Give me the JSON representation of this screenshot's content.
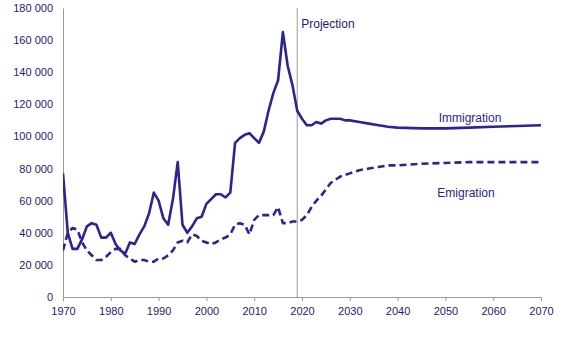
{
  "chart_data": {
    "type": "line",
    "x": [
      1970,
      1971,
      1972,
      1973,
      1974,
      1975,
      1976,
      1977,
      1978,
      1979,
      1980,
      1981,
      1982,
      1983,
      1984,
      1985,
      1986,
      1987,
      1988,
      1989,
      1990,
      1991,
      1992,
      1993,
      1994,
      1995,
      1996,
      1997,
      1998,
      1999,
      2000,
      2001,
      2002,
      2003,
      2004,
      2005,
      2006,
      2007,
      2008,
      2009,
      2010,
      2011,
      2012,
      2013,
      2014,
      2015,
      2016,
      2017,
      2018,
      2019,
      2020,
      2021,
      2022,
      2023,
      2024,
      2025,
      2026,
      2027,
      2028,
      2029,
      2030,
      2032,
      2034,
      2036,
      2038,
      2040,
      2045,
      2050,
      2055,
      2060,
      2065,
      2070
    ],
    "series": [
      {
        "name": "Immigration",
        "color": "#2a2590",
        "line_style": "solid",
        "values": [
          77000,
          40000,
          30000,
          30000,
          36000,
          44000,
          46000,
          45000,
          37000,
          37000,
          40000,
          33000,
          29000,
          27000,
          34000,
          33000,
          39000,
          44000,
          52000,
          65000,
          60000,
          49000,
          45000,
          61000,
          84000,
          45000,
          40000,
          44000,
          49000,
          50000,
          58000,
          61000,
          64000,
          64000,
          62000,
          65000,
          96000,
          99000,
          101000,
          102000,
          99000,
          96000,
          103000,
          116000,
          127000,
          135000,
          165000,
          144000,
          132000,
          116000,
          111000,
          107000,
          107000,
          109000,
          108000,
          110000,
          111000,
          111000,
          111000,
          110000,
          110000,
          109000,
          108000,
          107000,
          106000,
          105500,
          105000,
          105000,
          105500,
          106000,
          106500,
          107000
        ]
      },
      {
        "name": "Emigration",
        "color": "#2a2590",
        "line_style": "dashed",
        "values": [
          29000,
          40000,
          43000,
          42000,
          34000,
          29000,
          26000,
          23000,
          23000,
          25000,
          28000,
          30000,
          30000,
          26000,
          24000,
          22000,
          23000,
          23000,
          22000,
          22000,
          24000,
          24000,
          26000,
          29000,
          34000,
          35000,
          34000,
          39000,
          38000,
          35000,
          34000,
          33000,
          34000,
          36000,
          37000,
          39000,
          45000,
          46000,
          45000,
          39000,
          48000,
          51000,
          51000,
          51000,
          51000,
          56000,
          46000,
          46000,
          47000,
          47000,
          48000,
          51000,
          56000,
          60000,
          63000,
          67000,
          71000,
          73000,
          75000,
          76000,
          77000,
          79000,
          80000,
          81000,
          82000,
          82000,
          83000,
          83500,
          84000,
          84000,
          84000,
          84000
        ]
      }
    ],
    "xlim": [
      1970,
      2070
    ],
    "ylim": [
      0,
      180000
    ],
    "xticks": [
      1970,
      1980,
      1990,
      2000,
      2010,
      2020,
      2030,
      2040,
      2050,
      2060,
      2070
    ],
    "yticks": [
      0,
      {
        "value": 20000,
        "label": "20 000"
      },
      {
        "value": 40000,
        "label": "40 000"
      },
      {
        "value": 60000,
        "label": "60 000"
      },
      {
        "value": 80000,
        "label": "80 000"
      },
      {
        "value": 100000,
        "label": "100 000"
      },
      {
        "value": 120000,
        "label": "120 000"
      },
      {
        "value": 140000,
        "label": "140 000"
      },
      {
        "value": 160000,
        "label": "160 000"
      },
      {
        "value": 180000,
        "label": "180 000"
      }
    ],
    "grid": false,
    "annotations": [
      {
        "text": "Projection",
        "x": 2019
      }
    ]
  }
}
